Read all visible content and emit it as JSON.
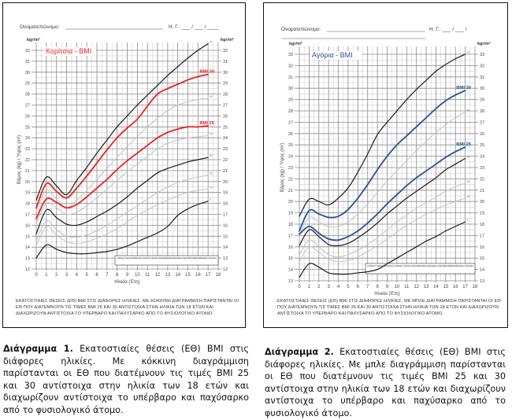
{
  "charts": [
    {
      "id": "girls",
      "form": {
        "name_label": "Ονοματεπώνυμο:",
        "date_label": "Η. Γ.: ___ / ___ / ____"
      },
      "unit": "kgr/m²",
      "title": "Κορίτσια - BMI",
      "y_axis_label": "Βάρος (kg) / Ύψος (m²)",
      "x_axis_label": "Ηλικία (Έτη)",
      "bmi30_label": "BMI 30",
      "bmi25_label": "BMI 25",
      "reference": "Α. Μπέσης, Γ. Χατζησ, Ν. Σταθόπουλος, Α. Μπιτσάς, Κ. Χρήστου, Δ. Ιατρός Διαβητολόγου / Θεσσαλονίκη - Κλινική Παιδιών Διαβήτη / Διαβητολόγος Γ. Χρηστάκης",
      "footnote": "ΕΚΑΤΟΣΤΙΑΙΕΣ ΘΕΣΕΙΣ (ΕΘ) ΒΜΙ ΣΤΙΣ ΔΙΑΦΟΡΕΣ ΗΛΙΚΙΕΣ. ΜΕ ΚΟΚΚΙΝΗ ΔΙΑΓΡΑΜΜΙΣΗ ΠΑΡΙΣΤΑΝΤΑΙ ΟΙ ΕΘ ΠΟΥ ΔΙΑΤΕΜΝΟΥΝ ΤΙΣ ΤΙΜΕΣ ΒΜΙ 25 ΚΑΙ 30 ΑΝΤΙΣΤΟΙΧΑ ΣΤΗΝ ΗΛΙΚΙΑ ΤΩΝ 18 ΕΤΩΝ ΚΑΙ ΔΙΑΧΩΡΙΖΟΥΝ ΑΝΤΙΣΤΟΙΧΑ ΤΟ ΥΠΕΡΒΑΡΟ ΚΑΙ ΠΑΧΥΣΑΡΚΟ ΑΠΟ ΤΟ ΦΥΣΙΟΛΟΓΙΚΟ ΑΤΟΜΟ.",
      "caption_bold": "Διάγραμμα 1.",
      "caption_text": " Εκατοστιαίες θέσεις (ΕΘ) BMI στις διάφορες ηλικίες. Με κόκκινη διαγράμμιση παρίστανται οι ΕΘ που διατέμνουν τις τιμές BMI 25 και 30 αντίστοιχα στην ηλικία των 18 ετών και διαχωρίζουν αντίστοιχα το υπέρβαρο και παχύσαρκο από το φυσιολογικό άτομο.",
      "accent": "#e8231f"
    },
    {
      "id": "boys",
      "form": {
        "name_label": "Ονοματεπώνυμο:",
        "date_label": "Η. Γ.: ___ / ___ /"
      },
      "unit": "kgr/m²",
      "title": "Αγόρια - BMI",
      "y_axis_label": "Βάρος (kg) / Ύψος (m²)",
      "x_axis_label": "Ηλικία (Έτη)",
      "bmi30_label": "BMI 30",
      "bmi25_label": "BMI 25",
      "reference": "Α. Μπέσης, Γ. Χατζησ, Ν. Σταθόπουλος, Α. Μπιτσάς, Κ. Χρήστου, Δ. Ιατρός Διαβητολόγου / Θεσσαλονίκη - Κλινική Παιδιών Διαβήτη / Διαβητολόγος Γ. Χρηστάκης",
      "footnote": "ΕΚΑΤΟΣΤΙΑΙΕΣ ΘΕΣΕΙΣ (ΕΘ) ΒΜΙ ΣΤΙΣ ΔΙΑΦΟΡΕΣ ΗΛΙΚΙΕΣ. ΜΕ ΜΠΛΕ ΔΙΑΓΡΑΜΜΙΣΗ ΠΑΡΙΣΤΑΝΤΑΙ ΟΙ ΕΘ ΠΟΥ ΔΙΑΤΕΜΝΟΥΝ ΤΙΣ ΤΙΜΕΣ ΒΜΙ 25 ΚΑΙ 30 ΑΝΤΙΣΤΟΙΧΑ ΣΤΗΝ ΗΛΙΚΙΑ ΤΩΝ 18 ΕΤΩΝ ΚΑΙ ΔΙΑΧΩΡΙΖΟΥΝ ΑΝΤΙΣΤΟΙΧΑ ΤΟ ΥΠΕΡΒΑΡΟ ΚΑΙ ΠΑΧΥΣΑΡΚΟ ΑΠΟ ΤΟ ΦΥΣΙΟΛΟΓΙΚΟ ΑΤΟΜΟ.",
      "caption_bold": "Διάγραμμα 2.",
      "caption_text": " Εκατοστιαίες θέσεις (ΕΘ) BMI στις διάφορες ηλικίες. Με μπλε διαγράμμιση παρίστανται οι ΕΘ που διατέμνουν τις τιμές BMI 25 και 30 αντίστοιχα στην ηλικία των 18 ετών και διαχωρίζουν αντίστοιχα το υπέρβαρο και παχύσαρκο από το φυσιολογικό άτομο.",
      "accent": "#2a4f9a"
    }
  ],
  "chart_data": [
    {
      "type": "line",
      "title": "Κορίτσια - BMI",
      "xlabel": "Ηλικία (Έτη)",
      "ylabel": "Βάρος (kg) / Ύψος (m²)",
      "xlim": [
        0,
        18
      ],
      "ylim": [
        12,
        32
      ],
      "x_ticks": [
        0,
        1,
        2,
        3,
        4,
        5,
        6,
        7,
        8,
        9,
        10,
        11,
        12,
        13,
        14,
        15,
        16,
        17,
        18
      ],
      "y_ticks": [
        12,
        13,
        14,
        15,
        16,
        17,
        18,
        19,
        20,
        21,
        22,
        23,
        24,
        25,
        26,
        27,
        28,
        29,
        30,
        31,
        32
      ],
      "grid": true,
      "x": [
        0,
        1,
        2,
        3,
        4,
        5,
        6,
        7,
        8,
        9,
        10,
        11,
        12,
        13,
        14,
        15,
        16,
        17
      ],
      "series": [
        {
          "name": "97",
          "style": "black",
          "values": [
            18.3,
            20.4,
            19.6,
            18.8,
            20.1,
            21.3,
            22.6,
            23.8,
            25.0,
            26.0,
            27.0,
            27.9,
            28.8,
            29.7,
            30.5,
            31.3,
            32.0,
            32.6
          ]
        },
        {
          "name": "BMI 30",
          "style": "accent",
          "values": [
            17.6,
            19.8,
            19.1,
            18.5,
            19.4,
            20.5,
            21.7,
            22.9,
            24.0,
            24.9,
            25.7,
            26.9,
            28.0,
            28.5,
            28.9,
            29.3,
            29.6,
            29.8
          ]
        },
        {
          "name": "90",
          "style": "gray",
          "values": [
            17.3,
            19.2,
            18.4,
            17.6,
            18.3,
            19.2,
            20.2,
            21.2,
            22.2,
            23.2,
            24.1,
            25.0,
            25.8,
            26.5,
            27.0,
            27.3,
            27.5,
            27.6
          ]
        },
        {
          "name": "BMI 25",
          "style": "accent",
          "values": [
            16.6,
            18.4,
            18.1,
            17.6,
            17.9,
            18.6,
            19.4,
            20.2,
            21.1,
            21.9,
            22.6,
            23.3,
            24.0,
            24.5,
            24.8,
            25.0,
            25.0,
            25.1
          ]
        },
        {
          "name": "75",
          "style": "gray",
          "values": [
            16.2,
            18.0,
            17.6,
            17.0,
            17.2,
            17.8,
            18.5,
            19.3,
            20.1,
            20.9,
            21.6,
            22.3,
            23.0,
            23.5,
            23.8,
            24.0,
            24.1,
            24.2
          ]
        },
        {
          "name": "50",
          "style": "black",
          "values": [
            15.2,
            17.4,
            16.7,
            16.1,
            16.0,
            16.3,
            16.8,
            17.3,
            17.9,
            18.6,
            19.4,
            20.1,
            20.8,
            21.2,
            21.5,
            21.8,
            22.0,
            22.2
          ]
        },
        {
          "name": "25",
          "style": "gray",
          "values": [
            14.6,
            16.4,
            15.6,
            15.0,
            14.9,
            15.1,
            15.5,
            16.0,
            16.6,
            17.2,
            17.8,
            18.4,
            19.0,
            19.5,
            19.9,
            20.2,
            20.4,
            20.6
          ]
        },
        {
          "name": "15",
          "style": "gray",
          "values": [
            14.1,
            15.9,
            15.1,
            14.5,
            14.3,
            14.5,
            14.8,
            15.2,
            15.7,
            16.3,
            16.9,
            17.4,
            17.9,
            18.3,
            18.7,
            19.0,
            19.2,
            19.3
          ]
        },
        {
          "name": "3",
          "style": "black",
          "values": [
            13.0,
            14.2,
            13.8,
            13.5,
            13.4,
            13.4,
            13.5,
            13.6,
            13.8,
            14.1,
            14.5,
            14.9,
            15.3,
            15.9,
            16.9,
            17.5,
            17.9,
            18.2
          ]
        }
      ]
    },
    {
      "type": "line",
      "title": "Αγόρια - BMI",
      "xlabel": "Ηλικία (Έτη)",
      "ylabel": "Βάρος (kg) / Ύψος (m²)",
      "xlim": [
        0,
        18
      ],
      "ylim": [
        13,
        33
      ],
      "x_ticks": [
        0,
        1,
        2,
        3,
        4,
        5,
        6,
        7,
        8,
        9,
        10,
        11,
        12,
        13,
        14,
        15,
        16,
        17,
        18
      ],
      "y_ticks": [
        13,
        14,
        15,
        16,
        17,
        18,
        19,
        20,
        21,
        22,
        23,
        24,
        25,
        26,
        27,
        28,
        29,
        30,
        31,
        32,
        33
      ],
      "grid": true,
      "x": [
        0,
        1,
        2,
        3,
        4,
        5,
        6,
        7,
        8,
        9,
        10,
        11,
        12,
        13,
        14,
        15,
        16,
        17
      ],
      "series": [
        {
          "name": "97",
          "style": "black",
          "values": [
            18.7,
            20.2,
            20.0,
            19.7,
            20.3,
            21.2,
            22.6,
            24.2,
            25.9,
            27.0,
            28.0,
            29.0,
            29.9,
            30.7,
            31.5,
            32.1,
            32.6,
            33.0
          ]
        },
        {
          "name": "BMI 30",
          "style": "accent",
          "values": [
            17.4,
            19.2,
            18.9,
            18.6,
            18.7,
            19.3,
            20.3,
            21.5,
            22.8,
            24.0,
            25.0,
            25.8,
            26.6,
            27.4,
            28.2,
            28.9,
            29.4,
            29.8
          ]
        },
        {
          "name": "90",
          "style": "gray",
          "values": [
            17.0,
            18.6,
            18.2,
            17.8,
            17.8,
            18.2,
            18.9,
            19.8,
            20.8,
            21.8,
            22.7,
            23.6,
            24.5,
            25.3,
            26.1,
            26.8,
            27.4,
            27.9
          ]
        },
        {
          "name": "BMI 25",
          "style": "accent",
          "values": [
            17.1,
            17.8,
            17.2,
            16.7,
            16.6,
            16.9,
            17.4,
            18.1,
            18.9,
            19.8,
            20.6,
            21.4,
            22.1,
            22.7,
            23.3,
            23.9,
            24.4,
            24.8
          ]
        },
        {
          "name": "50",
          "style": "black",
          "values": [
            16.1,
            17.5,
            16.9,
            16.2,
            16.1,
            16.3,
            16.8,
            17.4,
            18.1,
            18.9,
            19.6,
            20.3,
            20.9,
            21.5,
            22.1,
            22.8,
            23.3,
            23.8
          ]
        },
        {
          "name": "25",
          "style": "gray",
          "values": [
            15.3,
            16.6,
            16.0,
            15.3,
            15.1,
            15.3,
            15.7,
            16.2,
            16.8,
            17.5,
            18.2,
            18.8,
            19.4,
            19.9,
            20.4,
            20.9,
            21.3,
            21.6
          ]
        },
        {
          "name": "15",
          "style": "gray",
          "values": [
            14.7,
            16.0,
            15.5,
            14.9,
            14.7,
            14.8,
            15.1,
            15.6,
            16.1,
            16.7,
            17.3,
            17.9,
            18.4,
            18.9,
            19.3,
            19.7,
            20.0,
            20.3
          ]
        },
        {
          "name": "3",
          "style": "black",
          "values": [
            13.3,
            14.5,
            14.2,
            13.7,
            13.6,
            13.6,
            13.7,
            13.8,
            14.0,
            14.5,
            15.0,
            15.5,
            16.0,
            16.5,
            16.9,
            17.4,
            17.8,
            18.2
          ]
        }
      ]
    }
  ]
}
